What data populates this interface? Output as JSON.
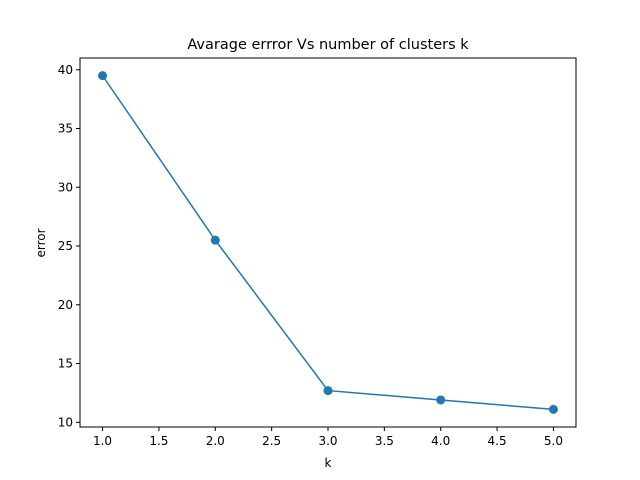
{
  "chart_data": {
    "type": "line",
    "title": "Avarage errror Vs number of clusters k",
    "xlabel": "k",
    "ylabel": "error",
    "x": [
      1.0,
      2.0,
      3.0,
      4.0,
      5.0
    ],
    "series": [
      {
        "values": [
          39.5,
          25.5,
          12.7,
          11.9,
          11.1
        ],
        "color": "#1f77b4",
        "marker": "circle"
      }
    ],
    "xlim": [
      0.8,
      5.2
    ],
    "ylim": [
      9.6,
      41.0
    ],
    "xticks": [
      "1.0",
      "1.5",
      "2.0",
      "2.5",
      "3.0",
      "3.5",
      "4.0",
      "4.5",
      "5.0"
    ],
    "yticks": [
      "10",
      "15",
      "20",
      "25",
      "30",
      "35",
      "40"
    ],
    "grid": false,
    "legend": "none"
  }
}
